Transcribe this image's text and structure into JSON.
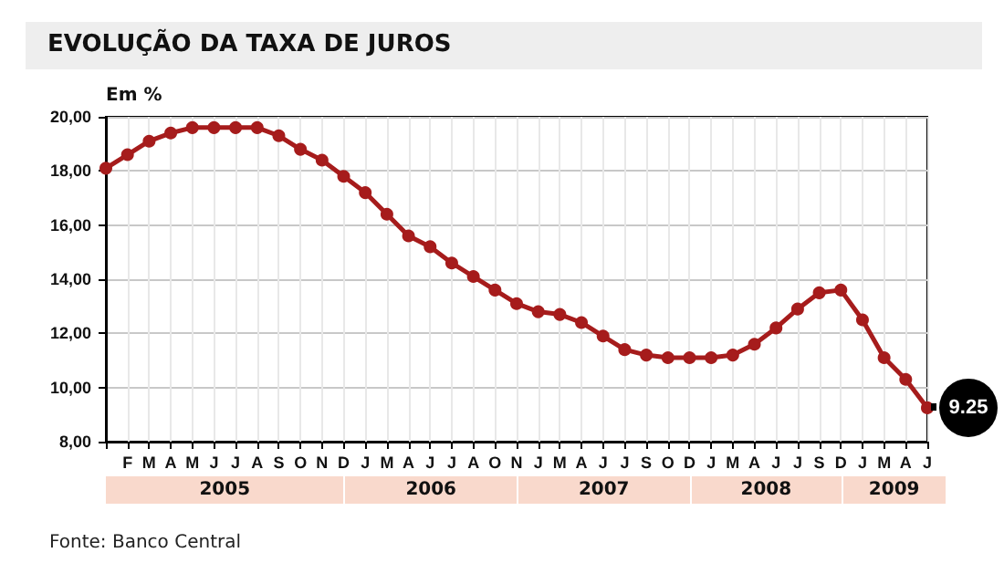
{
  "chart_data": {
    "type": "line",
    "title": "EVOLUÇÃO DA TAXA DE JUROS",
    "ylabel": "Em %",
    "categories": [
      null,
      "F",
      "M",
      "A",
      "M",
      "J",
      "J",
      "A",
      "S",
      "O",
      "N",
      "D",
      "J",
      "M",
      "A",
      "J",
      "J",
      "A",
      "O",
      "N",
      "J",
      "M",
      "A",
      "J",
      "J",
      "S",
      "O",
      "D",
      "J",
      "M",
      "A",
      "J",
      "J",
      "S",
      "D",
      "J",
      "M",
      "A",
      "J"
    ],
    "series": [
      {
        "color": "#a61c1c",
        "values": [
          18.1,
          18.6,
          19.1,
          19.4,
          19.6,
          19.6,
          19.6,
          19.6,
          19.3,
          18.8,
          18.4,
          17.8,
          17.2,
          16.4,
          15.6,
          15.2,
          14.6,
          14.1,
          13.6,
          13.1,
          12.8,
          12.7,
          12.4,
          11.9,
          11.4,
          11.2,
          11.1,
          11.1,
          11.1,
          11.2,
          11.6,
          12.2,
          12.9,
          13.5,
          13.6,
          12.5,
          11.1,
          10.3,
          9.25
        ],
        "value_labels": [
          null,
          null,
          null,
          null,
          null,
          null,
          null,
          null,
          null,
          null,
          null,
          null,
          null,
          null,
          null,
          null,
          null,
          null,
          null,
          null,
          null,
          null,
          null,
          null,
          null,
          null,
          null,
          null,
          null,
          null,
          null,
          null,
          null,
          null,
          null,
          null,
          null,
          null,
          "9.25"
        ]
      }
    ],
    "ylim": [
      8,
      20
    ],
    "yticks": [
      {
        "value": 8,
        "label": "8,00"
      },
      {
        "value": 10,
        "label": "10,00"
      },
      {
        "value": 12,
        "label": "12,00"
      },
      {
        "value": 14,
        "label": "14,00"
      },
      {
        "value": 16,
        "label": "16,00"
      },
      {
        "value": 18,
        "label": "18,00"
      },
      {
        "value": 20,
        "label": "20,00"
      }
    ],
    "grid": true,
    "marker": "circle",
    "line_style": "solid",
    "annotations": [
      "2005",
      "2006",
      "2007",
      "2008",
      "2009",
      "Fonte: Banco Central"
    ]
  }
}
